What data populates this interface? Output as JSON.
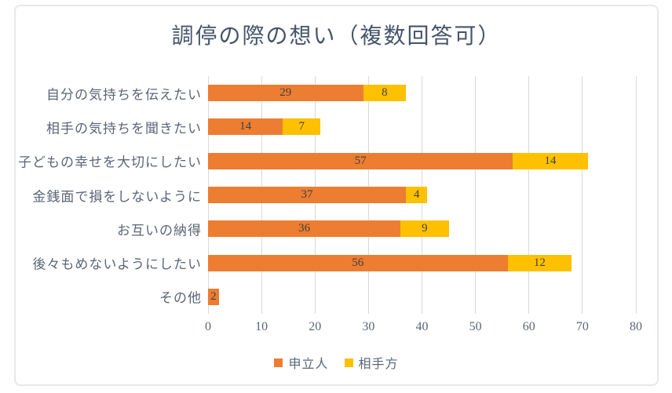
{
  "chart_data": {
    "type": "bar",
    "orientation": "horizontal",
    "stacked": true,
    "title": "調停の際の想い（複数回答可）",
    "categories": [
      "自分の気持ちを伝えたい",
      "相手の気持ちを聞きたい",
      "子どもの幸せを大切にしたい",
      "金銭面で損をしないように",
      "お互いの納得",
      "後々もめないようにしたい",
      "その他"
    ],
    "series": [
      {
        "name": "申立人",
        "color": "#ED7D31",
        "values": [
          29,
          14,
          57,
          37,
          36,
          56,
          2
        ]
      },
      {
        "name": "相手方",
        "color": "#FFC000",
        "values": [
          8,
          7,
          14,
          4,
          9,
          12,
          0
        ]
      }
    ],
    "xlim": [
      0,
      80
    ],
    "x_ticks": [
      0,
      10,
      20,
      30,
      40,
      50,
      60,
      70,
      80
    ],
    "grid": "vertical",
    "legend_position": "bottom",
    "value_labels": "inside-center"
  },
  "colors": {
    "series_applicant": "#ED7D31",
    "series_respondent": "#FFC000",
    "title_text": "#44546A",
    "axis_text": "#5A6677",
    "value_text": "#404040",
    "gridline": "#D9D9D9",
    "frame_border": "#E9E8E6",
    "background": "#FFFFFF"
  }
}
